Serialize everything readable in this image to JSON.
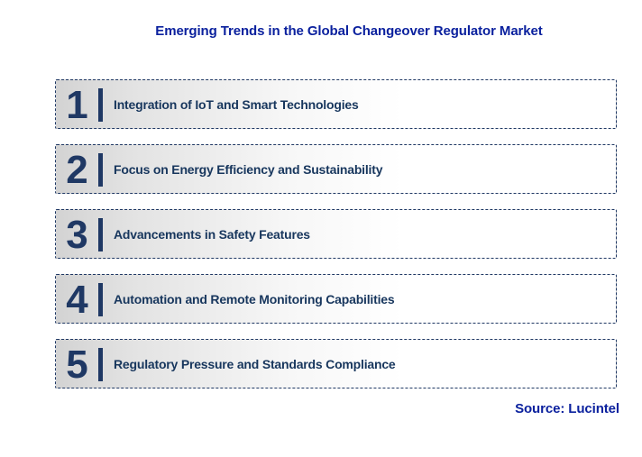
{
  "header": {
    "title": "Emerging Trends in the Global Changeover Regulator Market"
  },
  "trends": [
    {
      "number": "1",
      "label": "Integration of IoT and Smart Technologies"
    },
    {
      "number": "2",
      "label": "Focus on Energy Efficiency and Sustainability"
    },
    {
      "number": "3",
      "label": "Advancements in Safety Features"
    },
    {
      "number": "4",
      "label": "Automation and Remote Monitoring Capabilities"
    },
    {
      "number": "5",
      "label": "Regulatory Pressure and Standards Compliance"
    }
  ],
  "footer": {
    "source": "Source: Lucintel"
  },
  "colors": {
    "title_text": "#0B219E",
    "item_text": "#17365D",
    "number_text": "#1F3864",
    "accent_bar": "#1F3864",
    "dashed_border": "#1F3864",
    "row_gradient_start": "#D3D3D3",
    "row_gradient_end": "#FFFFFF",
    "page_background": "#FFFFFF"
  }
}
